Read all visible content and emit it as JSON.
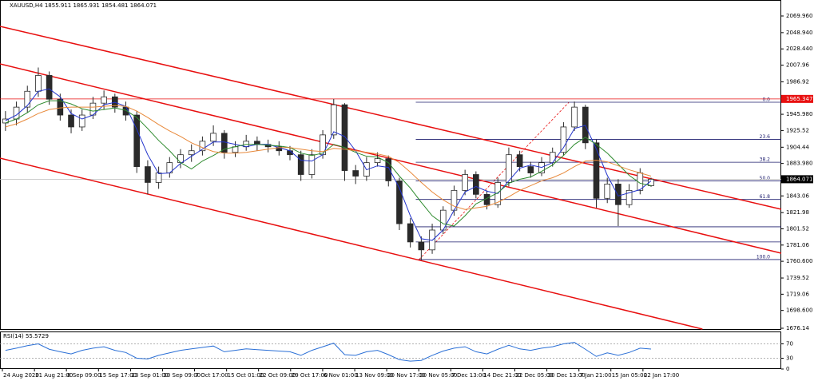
{
  "chart_data": [
    {
      "type": "candlestick",
      "title": "XAUUSD,H4 1855.911 1865.931 1854.481 1864.071",
      "ohlc": [
        [
          1935,
          1950,
          1925,
          1940
        ],
        [
          1940,
          1962,
          1932,
          1955
        ],
        [
          1955,
          1982,
          1948,
          1975
        ],
        [
          1975,
          2005,
          1968,
          1995
        ],
        [
          1995,
          2000,
          1958,
          1965
        ],
        [
          1965,
          1972,
          1938,
          1945
        ],
        [
          1945,
          1952,
          1922,
          1930
        ],
        [
          1930,
          1952,
          1925,
          1945
        ],
        [
          1945,
          1968,
          1940,
          1960
        ],
        [
          1960,
          1976,
          1952,
          1968
        ],
        [
          1968,
          1972,
          1948,
          1955
        ],
        [
          1955,
          1962,
          1938,
          1945
        ],
        [
          1945,
          1950,
          1872,
          1880
        ],
        [
          1880,
          1888,
          1845,
          1860
        ],
        [
          1860,
          1880,
          1852,
          1872
        ],
        [
          1872,
          1892,
          1866,
          1885
        ],
        [
          1885,
          1902,
          1878,
          1895
        ],
        [
          1895,
          1908,
          1886,
          1900
        ],
        [
          1900,
          1918,
          1894,
          1912
        ],
        [
          1912,
          1932,
          1906,
          1922
        ],
        [
          1922,
          1926,
          1890,
          1898
        ],
        [
          1898,
          1912,
          1892,
          1905
        ],
        [
          1905,
          1920,
          1900,
          1912
        ],
        [
          1912,
          1918,
          1900,
          1908
        ],
        [
          1908,
          1914,
          1898,
          1905
        ],
        [
          1905,
          1912,
          1894,
          1900
        ],
        [
          1900,
          1906,
          1888,
          1895
        ],
        [
          1895,
          1900,
          1862,
          1870
        ],
        [
          1870,
          1902,
          1865,
          1895
        ],
        [
          1895,
          1926,
          1890,
          1920
        ],
        [
          1920,
          1965.3,
          1915,
          1958
        ],
        [
          1958,
          1960,
          1862,
          1875
        ],
        [
          1875,
          1882,
          1858,
          1868
        ],
        [
          1868,
          1892,
          1862,
          1885
        ],
        [
          1885,
          1898,
          1880,
          1890
        ],
        [
          1890,
          1894,
          1855,
          1862
        ],
        [
          1862,
          1866,
          1800,
          1808
        ],
        [
          1808,
          1815,
          1778,
          1785
        ],
        [
          1785,
          1792,
          1762,
          1775
        ],
        [
          1775,
          1808,
          1770,
          1800
        ],
        [
          1800,
          1830,
          1795,
          1825
        ],
        [
          1825,
          1856,
          1818,
          1850
        ],
        [
          1850,
          1876,
          1844,
          1870
        ],
        [
          1870,
          1874,
          1840,
          1845
        ],
        [
          1845,
          1850,
          1826,
          1832
        ],
        [
          1832,
          1866,
          1828,
          1860
        ],
        [
          1860,
          1904,
          1855,
          1895
        ],
        [
          1895,
          1900,
          1874,
          1880
        ],
        [
          1880,
          1886,
          1866,
          1872
        ],
        [
          1872,
          1892,
          1868,
          1885
        ],
        [
          1885,
          1904,
          1880,
          1898
        ],
        [
          1898,
          1936,
          1894,
          1930
        ],
        [
          1930,
          1962,
          1925,
          1955
        ],
        [
          1955,
          1958,
          1902,
          1910
        ],
        [
          1910,
          1914,
          1828,
          1840
        ],
        [
          1840,
          1866,
          1834,
          1858
        ],
        [
          1858,
          1864,
          1805,
          1832
        ],
        [
          1832,
          1858,
          1828,
          1850
        ],
        [
          1850,
          1878,
          1845,
          1872
        ],
        [
          1855.911,
          1865.931,
          1854.481,
          1864.071
        ]
      ],
      "up_color": "#ffffff",
      "down_color": "#2a2a2a",
      "wick_color": "#2a2a2a",
      "series": [
        {
          "color": "#2233cc",
          "values": [
            1938,
            1945,
            1957,
            1975,
            1978,
            1968,
            1947,
            1940,
            1945,
            1958,
            1961,
            1956,
            1927,
            1895,
            1871,
            1872,
            1884,
            1893,
            1902,
            1911,
            1911,
            1908,
            1905,
            1908,
            1908,
            1904,
            1900,
            1888,
            1887,
            1895,
            1924,
            1918,
            1900,
            1876,
            1881,
            1879,
            1853,
            1818,
            1789,
            1787,
            1800,
            1825,
            1848,
            1855,
            1849,
            1846,
            1862,
            1878,
            1882,
            1879,
            1885,
            1904,
            1928,
            1932,
            1902,
            1869,
            1843,
            1847,
            1851,
            1862
          ]
        },
        {
          "color": "#2e8b2e",
          "values": [
            1935,
            1940,
            1948,
            1958,
            1963,
            1963,
            1959,
            1953,
            1950,
            1952,
            1954,
            1951,
            1942,
            1928,
            1913,
            1900,
            1885,
            1877,
            1887,
            1894,
            1902,
            1905,
            1908,
            1908,
            1907,
            1906,
            1904,
            1897,
            1894,
            1897,
            1908,
            1904,
            1898,
            1893,
            1892,
            1885,
            1868,
            1853,
            1835,
            1818,
            1808,
            1805,
            1818,
            1833,
            1840,
            1847,
            1859,
            1864,
            1867,
            1874,
            1882,
            1894,
            1908,
            1917,
            1908,
            1897,
            1883,
            1869,
            1859,
            1856
          ]
        },
        {
          "color": "#e8893a",
          "values": [
            1930,
            1934,
            1940,
            1947,
            1952,
            1954,
            1955,
            1955,
            1955,
            1956,
            1957,
            1956,
            1950,
            1942,
            1933,
            1925,
            1918,
            1910,
            1904,
            1899,
            1897,
            1897,
            1898,
            1900,
            1902,
            1904,
            1904,
            1902,
            1900,
            1899,
            1903,
            1902,
            1900,
            1898,
            1896,
            1893,
            1885,
            1873,
            1860,
            1848,
            1838,
            1830,
            1826,
            1828,
            1830,
            1835,
            1842,
            1850,
            1856,
            1862,
            1866,
            1872,
            1880,
            1887,
            1888,
            1886,
            1881,
            1876,
            1872,
            1868
          ]
        }
      ],
      "trendlines": [
        {
          "color": "#e81010",
          "x": [
            -0.5,
            70.9
          ],
          "y": [
            2056.9,
            1826.2
          ]
        },
        {
          "color": "#e81010",
          "x": [
            -0.5,
            70.9
          ],
          "y": [
            2009.5,
            1770.8
          ]
        },
        {
          "color": "#e81010",
          "x": [
            -0.5,
            63.7
          ],
          "y": [
            1890.7,
            1675.1
          ]
        }
      ],
      "hline": {
        "value": 1965.347,
        "color": "#e81010"
      },
      "current": {
        "value": 1864.071,
        "color": "#000000"
      },
      "fib": {
        "color": "#1c1c6e",
        "trend_color": "#e81010",
        "trend_x": [
          37.8,
          51.5
        ],
        "trend_y": [
          1762.8,
          1961.2
        ],
        "x": [
          37.5,
          70.9
        ],
        "levels": [
          {
            "value": 1961.2,
            "label": "0.0"
          },
          {
            "value": 1914.4,
            "label": "23.6"
          },
          {
            "value": 1885.5,
            "label": "38.2"
          },
          {
            "value": 1862.0,
            "label": "50.0"
          },
          {
            "value": 1838.6,
            "label": "61.8"
          },
          {
            "value": 1804.1,
            "label": null
          },
          {
            "value": 1785.0,
            "label": null
          },
          {
            "value": 1762.8,
            "label": "100.0"
          }
        ]
      },
      "xlim": [
        -0.5,
        70.9
      ],
      "ylim": [
        1675.1,
        2090.1
      ],
      "yticks": [
        {
          "value": 2069.96,
          "label": "2069.960"
        },
        {
          "value": 2048.94,
          "label": "2048.940"
        },
        {
          "value": 2028.44,
          "label": "2028.440"
        },
        2007.96,
        1986.92,
        {
          "value": 1945.98,
          "label": "1945.980"
        },
        1925.52,
        1904.44,
        {
          "value": 1883.98,
          "label": "1883.980"
        },
        1843.06,
        1821.98,
        1801.52,
        1781.06,
        {
          "value": 1760.6,
          "label": "1760.600"
        },
        1739.52,
        1719.06,
        {
          "value": 1698.6,
          "label": "1698.600"
        },
        1676.14
      ],
      "xticks": [
        {
          "value": -0.28,
          "label": "24 Aug 2020"
        },
        {
          "value": 2.65,
          "label": "31 Aug 21:00"
        },
        {
          "value": 5.57,
          "label": "8 Sep 09:00"
        },
        {
          "value": 8.5,
          "label": "15 Sep 17:00"
        },
        {
          "value": 11.43,
          "label": "23 Sep 01:00"
        },
        {
          "value": 14.35,
          "label": "30 Sep 09:00"
        },
        {
          "value": 17.28,
          "label": "7 Oct 17:00"
        },
        {
          "value": 20.21,
          "label": "15 Oct 01:00"
        },
        {
          "value": 23.13,
          "label": "22 Oct 09:00"
        },
        {
          "value": 26.06,
          "label": "29 Oct 17:00"
        },
        {
          "value": 28.99,
          "label": "6 Nov 01:00"
        },
        {
          "value": 31.92,
          "label": "13 Nov 09:00"
        },
        {
          "value": 34.84,
          "label": "20 Nov 17:00"
        },
        {
          "value": 37.77,
          "label": "30 Nov 05:00"
        },
        {
          "value": 40.7,
          "label": "7 Dec 13:00"
        },
        {
          "value": 43.62,
          "label": "14 Dec 21:00"
        },
        {
          "value": 46.55,
          "label": "22 Dec 05:00"
        },
        {
          "value": 49.48,
          "label": "30 Dec 13:00"
        },
        {
          "value": 52.41,
          "label": "7 Jan 21:00"
        },
        {
          "value": 55.33,
          "label": "15 Jan 05:00"
        },
        {
          "value": 58.26,
          "label": "22 Jan 17:00"
        }
      ]
    },
    {
      "type": "line",
      "title": "RSI(14) 55.5729",
      "color": "#2a6fd6",
      "values": [
        52,
        58,
        65,
        70,
        55,
        48,
        42,
        52,
        58,
        62,
        52,
        46,
        30,
        28,
        38,
        45,
        52,
        56,
        60,
        64,
        48,
        52,
        56,
        54,
        52,
        50,
        48,
        38,
        52,
        62,
        72,
        40,
        38,
        48,
        52,
        40,
        26,
        22,
        24,
        38,
        50,
        58,
        62,
        48,
        42,
        55,
        66,
        56,
        52,
        58,
        62,
        70,
        74,
        55,
        35,
        45,
        38,
        46,
        58,
        55.5729
      ],
      "levels": [
        70,
        30
      ],
      "ylim": [
        0,
        100
      ],
      "yticks": [
        70,
        30,
        0
      ]
    }
  ]
}
